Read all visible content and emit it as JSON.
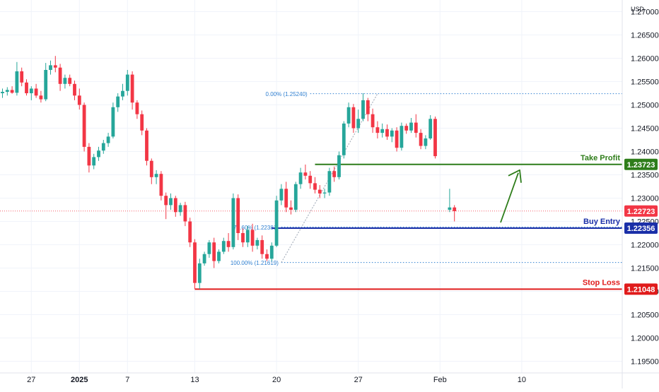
{
  "chart_data": {
    "type": "candlestick",
    "currency": "USD",
    "y_ticks": [
      "1.27000",
      "1.26500",
      "1.26000",
      "1.25500",
      "1.25000",
      "1.24500",
      "1.24000",
      "1.23500",
      "1.23000",
      "1.22500",
      "1.22000",
      "1.21500",
      "1.21000",
      "1.20500",
      "1.20000",
      "1.19500"
    ],
    "y_tick_values": [
      1.27,
      1.265,
      1.26,
      1.255,
      1.25,
      1.245,
      1.24,
      1.235,
      1.23,
      1.225,
      1.22,
      1.215,
      1.21,
      1.205,
      1.2,
      1.195
    ],
    "ylim": [
      1.1925,
      1.2725
    ],
    "x_ticks": [
      {
        "label": "27",
        "i": 6
      },
      {
        "label": "2025",
        "i": 16
      },
      {
        "label": "7",
        "i": 26
      },
      {
        "label": "13",
        "i": 40
      },
      {
        "label": "20",
        "i": 57
      },
      {
        "label": "27",
        "i": 74
      },
      {
        "label": "Feb",
        "i": 91
      },
      {
        "label": "10",
        "i": 108
      }
    ],
    "candles": [
      [
        1.2525,
        1.2535,
        1.2515,
        1.2528
      ],
      [
        1.2528,
        1.2538,
        1.252,
        1.2532
      ],
      [
        1.2532,
        1.254,
        1.2524,
        1.2526
      ],
      [
        1.2526,
        1.2592,
        1.252,
        1.2572
      ],
      [
        1.2572,
        1.258,
        1.254,
        1.2548
      ],
      [
        1.2548,
        1.2555,
        1.252,
        1.2525
      ],
      [
        1.2525,
        1.254,
        1.251,
        1.2535
      ],
      [
        1.2535,
        1.2545,
        1.2515,
        1.252
      ],
      [
        1.252,
        1.253,
        1.2505,
        1.2512
      ],
      [
        1.2512,
        1.259,
        1.2508,
        1.2575
      ],
      [
        1.2575,
        1.2595,
        1.2565,
        1.2585
      ],
      [
        1.2585,
        1.2605,
        1.257,
        1.258
      ],
      [
        1.258,
        1.2588,
        1.253,
        1.2545
      ],
      [
        1.2545,
        1.2565,
        1.2535,
        1.2558
      ],
      [
        1.2558,
        1.2565,
        1.254,
        1.2545
      ],
      [
        1.2545,
        1.2552,
        1.251,
        1.252
      ],
      [
        1.252,
        1.2535,
        1.249,
        1.25
      ],
      [
        1.25,
        1.2505,
        1.24,
        1.241
      ],
      [
        1.241,
        1.2418,
        1.2355,
        1.237
      ],
      [
        1.237,
        1.2395,
        1.2362,
        1.2388
      ],
      [
        1.2388,
        1.241,
        1.238,
        1.2402
      ],
      [
        1.2402,
        1.2425,
        1.2395,
        1.2418
      ],
      [
        1.2418,
        1.244,
        1.241,
        1.2432
      ],
      [
        1.2432,
        1.2505,
        1.2428,
        1.2495
      ],
      [
        1.2495,
        1.2525,
        1.2485,
        1.2518
      ],
      [
        1.2518,
        1.2545,
        1.251,
        1.253
      ],
      [
        1.253,
        1.2575,
        1.252,
        1.2565
      ],
      [
        1.2565,
        1.2572,
        1.249,
        1.2505
      ],
      [
        1.2505,
        1.251,
        1.247,
        1.248
      ],
      [
        1.248,
        1.2488,
        1.2435,
        1.2445
      ],
      [
        1.2445,
        1.245,
        1.237,
        1.238
      ],
      [
        1.238,
        1.2385,
        1.233,
        1.2345
      ],
      [
        1.2345,
        1.236,
        1.233,
        1.2352
      ],
      [
        1.2352,
        1.2358,
        1.2295,
        1.2305
      ],
      [
        1.2305,
        1.2312,
        1.2255,
        1.2285
      ],
      [
        1.2285,
        1.231,
        1.2275,
        1.23
      ],
      [
        1.23,
        1.2305,
        1.226,
        1.227
      ],
      [
        1.227,
        1.229,
        1.2262,
        1.2285
      ],
      [
        1.2285,
        1.2292,
        1.224,
        1.225
      ],
      [
        1.225,
        1.2258,
        1.2195,
        1.2205
      ],
      [
        1.2205,
        1.2212,
        1.2105,
        1.2118
      ],
      [
        1.2118,
        1.217,
        1.2105,
        1.216
      ],
      [
        1.216,
        1.2185,
        1.2155,
        1.218
      ],
      [
        1.218,
        1.221,
        1.2172,
        1.2205
      ],
      [
        1.2205,
        1.2215,
        1.215,
        1.2165
      ],
      [
        1.2165,
        1.219,
        1.216,
        1.2185
      ],
      [
        1.2185,
        1.2215,
        1.218,
        1.2208
      ],
      [
        1.2208,
        1.2225,
        1.2185,
        1.2195
      ],
      [
        1.2195,
        1.231,
        1.219,
        1.23
      ],
      [
        1.23,
        1.2308,
        1.221,
        1.2225
      ],
      [
        1.2225,
        1.2235,
        1.2195,
        1.2205
      ],
      [
        1.2205,
        1.224,
        1.2195,
        1.2232
      ],
      [
        1.2232,
        1.2245,
        1.2185,
        1.2198
      ],
      [
        1.2198,
        1.2215,
        1.219,
        1.221
      ],
      [
        1.221,
        1.222,
        1.217,
        1.218
      ],
      [
        1.218,
        1.219,
        1.2165,
        1.217
      ],
      [
        1.217,
        1.2205,
        1.2165,
        1.2198
      ],
      [
        1.2198,
        1.2305,
        1.2195,
        1.2295
      ],
      [
        1.2295,
        1.233,
        1.2285,
        1.232
      ],
      [
        1.232,
        1.2335,
        1.227,
        1.228
      ],
      [
        1.228,
        1.2295,
        1.2265,
        1.2275
      ],
      [
        1.2275,
        1.2335,
        1.227,
        1.233
      ],
      [
        1.233,
        1.2365,
        1.232,
        1.2355
      ],
      [
        1.2355,
        1.2372,
        1.234,
        1.2348
      ],
      [
        1.2348,
        1.2358,
        1.232,
        1.2332
      ],
      [
        1.2332,
        1.2345,
        1.231,
        1.2318
      ],
      [
        1.2318,
        1.2328,
        1.23,
        1.231
      ],
      [
        1.231,
        1.232,
        1.23,
        1.2312
      ],
      [
        1.2312,
        1.2365,
        1.2305,
        1.2358
      ],
      [
        1.2358,
        1.2368,
        1.2335,
        1.2345
      ],
      [
        1.2345,
        1.24,
        1.234,
        1.2392
      ],
      [
        1.2392,
        1.2465,
        1.2385,
        1.246
      ],
      [
        1.246,
        1.2505,
        1.2452,
        1.2495
      ],
      [
        1.2495,
        1.2502,
        1.244,
        1.245
      ],
      [
        1.245,
        1.249,
        1.244,
        1.247
      ],
      [
        1.247,
        1.2525,
        1.2465,
        1.251
      ],
      [
        1.251,
        1.2515,
        1.2465,
        1.248
      ],
      [
        1.248,
        1.2492,
        1.244,
        1.2452
      ],
      [
        1.2452,
        1.2465,
        1.2428,
        1.244
      ],
      [
        1.244,
        1.246,
        1.243,
        1.2448
      ],
      [
        1.2448,
        1.2458,
        1.2425,
        1.2432
      ],
      [
        1.2432,
        1.245,
        1.242,
        1.2445
      ],
      [
        1.2445,
        1.2452,
        1.24,
        1.2408
      ],
      [
        1.2408,
        1.2462,
        1.2402,
        1.2455
      ],
      [
        1.2455,
        1.246,
        1.2438,
        1.2445
      ],
      [
        1.2445,
        1.2472,
        1.244,
        1.2462
      ],
      [
        1.2462,
        1.248,
        1.243,
        1.244
      ],
      [
        1.244,
        1.2448,
        1.2405,
        1.2412
      ],
      [
        1.2412,
        1.2435,
        1.2405,
        1.2428
      ],
      [
        1.2428,
        1.2478,
        1.2425,
        1.247
      ],
      [
        1.247,
        1.2475,
        1.2385,
        1.239
      ],
      null,
      null,
      [
        1.2275,
        1.232,
        1.227,
        1.228
      ],
      [
        1.228,
        1.2285,
        1.225,
        1.2272
      ]
    ],
    "levels": {
      "take_profit": {
        "label": "Take Profit",
        "value": 1.23723,
        "tag": "1.23723",
        "color": "#2e7d1a",
        "from_i": 65
      },
      "buy_entry": {
        "label": "Buy Entry",
        "value": 1.22356,
        "tag": "1.22356",
        "color": "#1a2fa8",
        "from_i": 56
      },
      "stop_loss": {
        "label": "Stop Loss",
        "value": 1.21048,
        "tag": "1.21048",
        "color": "#e01b1b",
        "from_i": 40
      },
      "current": {
        "value": 1.22723,
        "tag": "1.22723",
        "color": "#f23645"
      }
    },
    "fibonacci": {
      "color": "#2f7fd0",
      "levels": [
        {
          "label": "0.00% (1.25240)",
          "value": 1.2524,
          "from_i": 64
        },
        {
          "label": "78.60% (1.22381)",
          "value": 1.22381,
          "from_i": 58
        },
        {
          "label": "100.00% (1.21619)",
          "value": 1.21619,
          "from_i": 58
        }
      ]
    },
    "colors": {
      "up": "#26a69a",
      "down": "#f23645",
      "grid": "#f0f3fa",
      "axis_text": "#131722"
    }
  }
}
